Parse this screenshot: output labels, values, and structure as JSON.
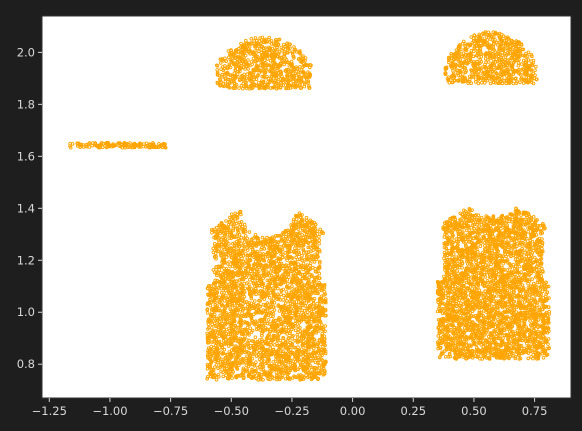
{
  "chart_data": {
    "type": "scatter",
    "title": "",
    "xlabel": "",
    "ylabel": "",
    "xlim": [
      -1.28,
      0.9
    ],
    "ylim": [
      0.67,
      2.14
    ],
    "x_ticks": [
      "−1.25",
      "−1.00",
      "−0.75",
      "−0.50",
      "−0.25",
      "0.00",
      "0.25",
      "0.50",
      "0.75"
    ],
    "x_tick_values": [
      -1.25,
      -1.0,
      -0.75,
      -0.5,
      -0.25,
      0.0,
      0.25,
      0.5,
      0.75
    ],
    "y_ticks": [
      "0.8",
      "1.0",
      "1.2",
      "1.4",
      "1.6",
      "1.8",
      "2.0"
    ],
    "y_tick_values": [
      0.8,
      1.0,
      1.2,
      1.4,
      1.6,
      1.8,
      2.0
    ],
    "grid": false,
    "legend": "none",
    "series_color": "#ffa500",
    "point_clusters": [
      {
        "id": "strip-left",
        "shape": "rect",
        "x": [
          -1.17,
          -0.77
        ],
        "y": [
          1.633,
          1.653
        ],
        "density": 140
      },
      {
        "id": "dome-left",
        "shape": "dome",
        "x": [
          -0.56,
          -0.17
        ],
        "y_base": [
          1.86,
          1.92
        ],
        "y_top": 2.06,
        "density": 700
      },
      {
        "id": "dome-right",
        "shape": "dome",
        "x": [
          0.38,
          0.76
        ],
        "y_base": [
          1.88,
          1.92
        ],
        "y_top": 2.08,
        "density": 700
      },
      {
        "id": "shirt-left",
        "shape": "shirt-neck",
        "x_upper": [
          -0.59,
          -0.12
        ],
        "x_lower": [
          -0.6,
          -0.11
        ],
        "y": [
          0.74,
          1.39
        ],
        "neck_center": -0.35,
        "neck_halfwidth": 0.11,
        "neck_bottom": 1.29,
        "shoulder_y": 1.3,
        "density": 3200
      },
      {
        "id": "shirt-right",
        "shape": "shirt-flat",
        "x_upper": [
          0.36,
          0.8
        ],
        "x_lower": [
          0.35,
          0.81
        ],
        "y": [
          0.82,
          1.4
        ],
        "neck_center": 0.58,
        "neck_halfwidth": 0.09,
        "neck_bottom": 1.37,
        "shoulder_y": 1.32,
        "density": 3200
      }
    ]
  }
}
